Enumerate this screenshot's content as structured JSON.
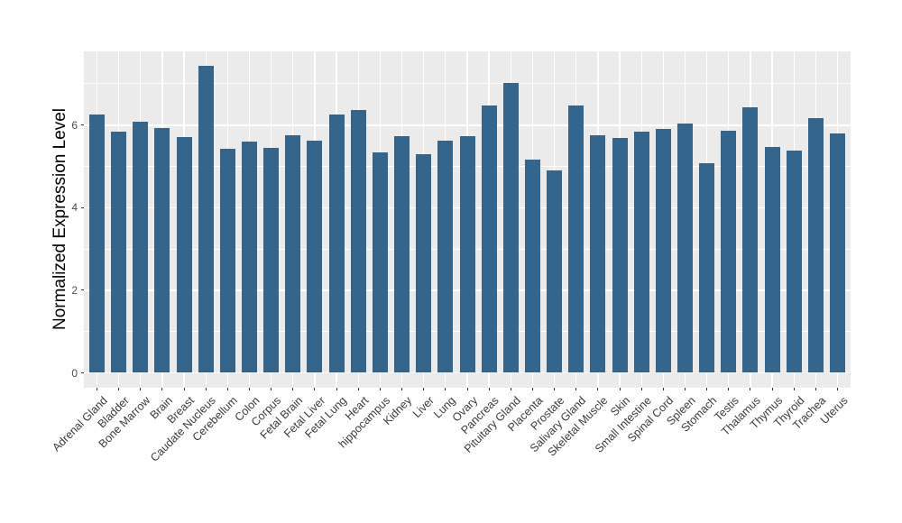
{
  "figure": {
    "background_color": "#FFFFFF",
    "panel_background_color": "#EBEBEB",
    "gridline_color": "#FFFFFF",
    "bar_color": "#36658C",
    "axis_text_color": "#4D4D4D",
    "axis_title_color": "#000000"
  },
  "chart_data": {
    "type": "bar",
    "title": "",
    "xlabel": "",
    "ylabel": "Normalized Expression Level",
    "categories": [
      "Adrenal Gland",
      "Bladder",
      "Bone Marrow",
      "Brain",
      "Breast",
      "Caudate Nucleus",
      "Cerebellum",
      "Colon",
      "Corpus",
      "Fetal Brain",
      "Fetal Liver",
      "Fetal Lung",
      "Heart",
      "hippocampus",
      "Kidney",
      "Liver",
      "Lung",
      "Ovary",
      "Pancreas",
      "Pituitary Gland",
      "Placenta",
      "Prostate",
      "Salivary Gland",
      "Skeletal Muscle",
      "Skin",
      "Small Intestine",
      "Spinal Cord",
      "Spleen",
      "Stomach",
      "Testis",
      "Thalamus",
      "Thymus",
      "Thyroid",
      "Trachea",
      "Uterus"
    ],
    "values": [
      6.25,
      5.82,
      6.06,
      5.91,
      5.7,
      7.42,
      5.42,
      5.58,
      5.44,
      5.74,
      5.61,
      6.25,
      6.36,
      5.32,
      5.73,
      5.29,
      5.61,
      5.71,
      6.46,
      7.0,
      5.15,
      4.9,
      6.46,
      5.74,
      5.67,
      5.82,
      5.9,
      6.03,
      5.07,
      5.86,
      6.42,
      5.46,
      5.38,
      6.15,
      5.79
    ],
    "ytick_labels": [
      "0",
      "2",
      "4",
      "6"
    ],
    "yticks": [
      0,
      2,
      4,
      6
    ],
    "yticks_minor": [
      1,
      3,
      5,
      7
    ],
    "ylim": [
      0,
      7.8
    ],
    "grid": true,
    "legend_position": "none"
  }
}
